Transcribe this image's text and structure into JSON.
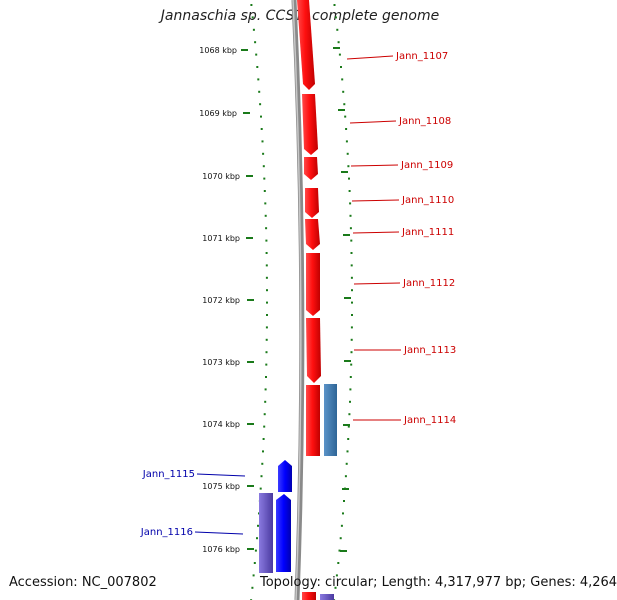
{
  "title": "Jannaschia sp. CCS1, complete genome",
  "footer": {
    "accession": "Accession: NC_007802",
    "summary": "Topology: circular; Length: 4,317,977 bp; Genes: 4,264"
  },
  "ruler": {
    "labels": [
      "1068 kbp",
      "1069 kbp",
      "1070 kbp",
      "1071 kbp",
      "1072 kbp",
      "1073 kbp",
      "1074 kbp",
      "1075 kbp",
      "1076 kbp"
    ]
  },
  "genes": [
    {
      "name": "Jann_1107",
      "strand": "forward",
      "color": "#e00000"
    },
    {
      "name": "Jann_1108",
      "strand": "forward",
      "color": "#e00000"
    },
    {
      "name": "Jann_1109",
      "strand": "forward",
      "color": "#e00000"
    },
    {
      "name": "Jann_1110",
      "strand": "forward",
      "color": "#e00000"
    },
    {
      "name": "Jann_1111",
      "strand": "forward",
      "color": "#e00000"
    },
    {
      "name": "Jann_1112",
      "strand": "forward",
      "color": "#e00000"
    },
    {
      "name": "Jann_1113",
      "strand": "forward",
      "color": "#e00000"
    },
    {
      "name": "Jann_1114",
      "strand": "forward",
      "color": "#e00000"
    },
    {
      "name": "Jann_1115",
      "strand": "reverse",
      "color": "#0000cc"
    },
    {
      "name": "Jann_1116",
      "strand": "reverse",
      "color": "#0000cc"
    }
  ],
  "colors": {
    "forward_gene": "#ff0000",
    "reverse_gene": "#0000ff",
    "forward_label": "#cc0000",
    "reverse_label": "#0000aa",
    "rna_feature": "#3a78b0",
    "reverse_feature": "#6a5acd",
    "ruler_tick": "#1a7a1a",
    "backbone": "#888888"
  }
}
